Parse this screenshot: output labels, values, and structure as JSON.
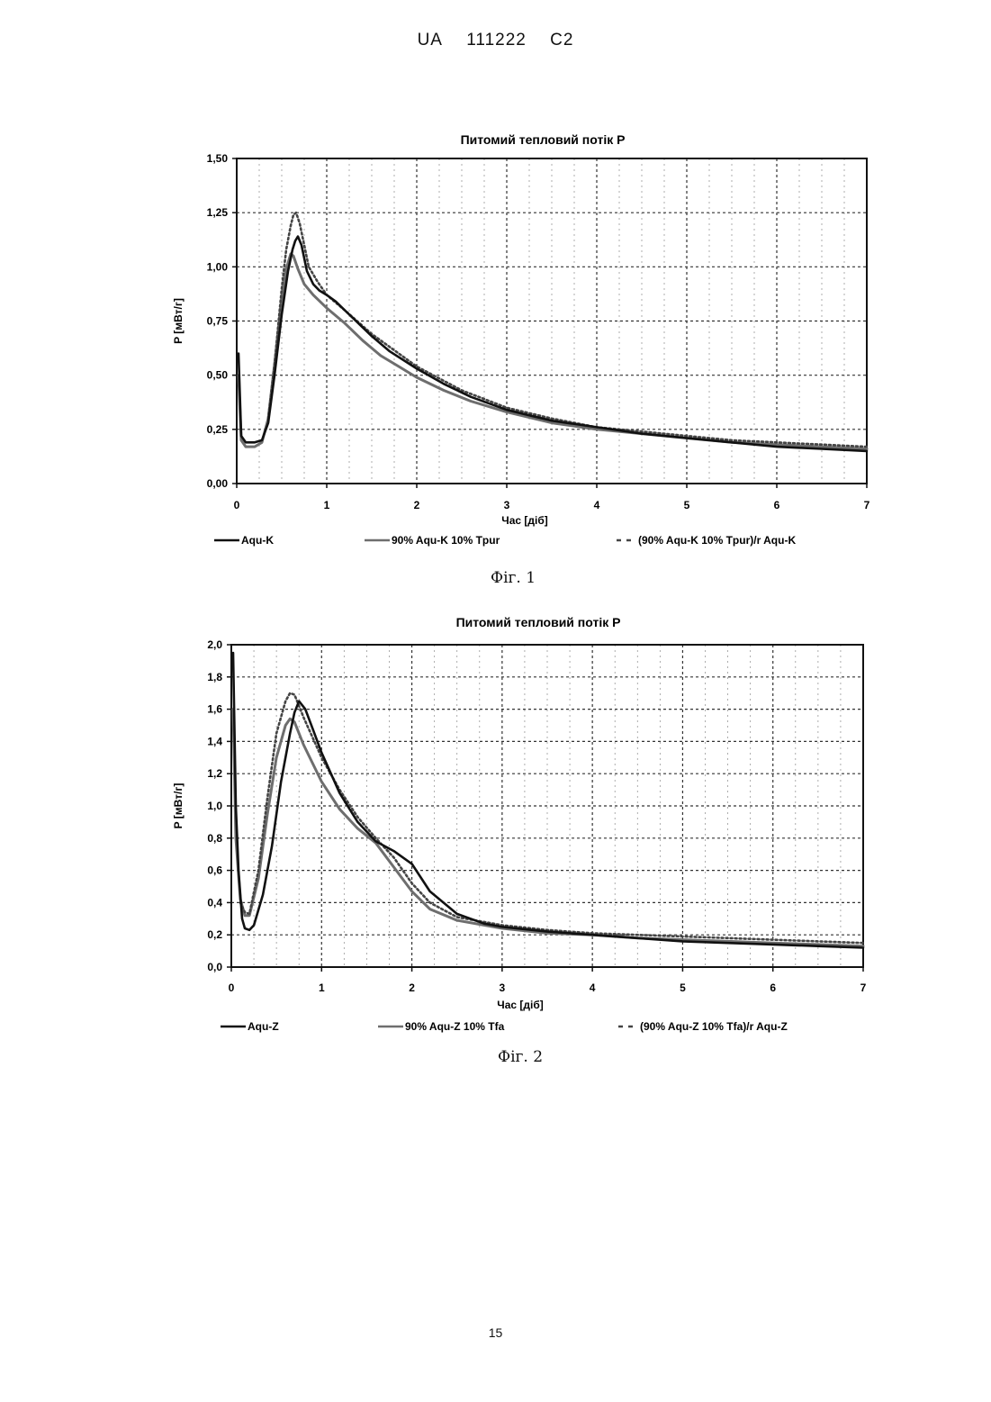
{
  "header": {
    "country": "UA",
    "number": "111222",
    "kind": "C2"
  },
  "page_number": "15",
  "captions": [
    "Фіг. 1",
    "Фіг. 2"
  ],
  "chart_data": [
    {
      "type": "line",
      "title": "Питомий тепловий потік P",
      "xlabel": "Час [діб]",
      "ylabel": "P [мВт/г]",
      "xlim": [
        0,
        7
      ],
      "ylim": [
        0,
        1.5
      ],
      "grid": true,
      "legend": "bottom",
      "x_ticks": [
        "0",
        "1",
        "2",
        "3",
        "4",
        "5",
        "6",
        "7"
      ],
      "y_ticks": [
        "0,00",
        "0,25",
        "0,50",
        "0,75",
        "1,00",
        "1,25",
        "1,50"
      ],
      "series": [
        {
          "name": "Aqu-K",
          "color": "#111111",
          "style": "solid",
          "points": [
            [
              0.02,
              0.6
            ],
            [
              0.05,
              0.22
            ],
            [
              0.1,
              0.19
            ],
            [
              0.2,
              0.19
            ],
            [
              0.28,
              0.2
            ],
            [
              0.35,
              0.28
            ],
            [
              0.42,
              0.5
            ],
            [
              0.5,
              0.78
            ],
            [
              0.57,
              0.98
            ],
            [
              0.62,
              1.08
            ],
            [
              0.65,
              1.12
            ],
            [
              0.68,
              1.14
            ],
            [
              0.72,
              1.1
            ],
            [
              0.78,
              0.98
            ],
            [
              0.85,
              0.92
            ],
            [
              0.92,
              0.89
            ],
            [
              1.0,
              0.87
            ],
            [
              1.1,
              0.84
            ],
            [
              1.2,
              0.8
            ],
            [
              1.3,
              0.76
            ],
            [
              1.5,
              0.68
            ],
            [
              1.7,
              0.61
            ],
            [
              2.0,
              0.53
            ],
            [
              2.3,
              0.46
            ],
            [
              2.6,
              0.4
            ],
            [
              3.0,
              0.34
            ],
            [
              3.5,
              0.29
            ],
            [
              4.0,
              0.26
            ],
            [
              4.5,
              0.23
            ],
            [
              5.0,
              0.21
            ],
            [
              5.5,
              0.19
            ],
            [
              6.0,
              0.17
            ],
            [
              6.5,
              0.16
            ],
            [
              7.0,
              0.15
            ]
          ]
        },
        {
          "name": "90% Aqu-K 10% Tpur",
          "color": "#6e6e6e",
          "style": "solid",
          "points": [
            [
              0.02,
              0.5
            ],
            [
              0.05,
              0.2
            ],
            [
              0.1,
              0.17
            ],
            [
              0.2,
              0.17
            ],
            [
              0.28,
              0.19
            ],
            [
              0.35,
              0.3
            ],
            [
              0.42,
              0.55
            ],
            [
              0.5,
              0.85
            ],
            [
              0.55,
              0.99
            ],
            [
              0.6,
              1.06
            ],
            [
              0.63,
              1.05
            ],
            [
              0.68,
              0.99
            ],
            [
              0.75,
              0.92
            ],
            [
              0.85,
              0.87
            ],
            [
              1.0,
              0.81
            ],
            [
              1.2,
              0.74
            ],
            [
              1.4,
              0.66
            ],
            [
              1.6,
              0.59
            ],
            [
              1.8,
              0.54
            ],
            [
              2.0,
              0.49
            ],
            [
              2.3,
              0.43
            ],
            [
              2.6,
              0.38
            ],
            [
              3.0,
              0.33
            ],
            [
              3.5,
              0.28
            ],
            [
              4.0,
              0.25
            ],
            [
              4.5,
              0.23
            ],
            [
              5.0,
              0.21
            ],
            [
              5.5,
              0.19
            ],
            [
              6.0,
              0.18
            ],
            [
              6.5,
              0.17
            ],
            [
              7.0,
              0.16
            ]
          ]
        },
        {
          "name": "(90% Aqu-K 10% Tpur)/r Aqu-K",
          "color": "#444444",
          "style": "dashed",
          "points": [
            [
              0.35,
              0.3
            ],
            [
              0.42,
              0.55
            ],
            [
              0.5,
              0.9
            ],
            [
              0.55,
              1.08
            ],
            [
              0.6,
              1.19
            ],
            [
              0.63,
              1.24
            ],
            [
              0.66,
              1.25
            ],
            [
              0.7,
              1.2
            ],
            [
              0.75,
              1.1
            ],
            [
              0.8,
              1.0
            ],
            [
              0.9,
              0.93
            ],
            [
              1.0,
              0.87
            ],
            [
              1.2,
              0.8
            ],
            [
              1.5,
              0.69
            ],
            [
              2.0,
              0.54
            ],
            [
              2.5,
              0.43
            ],
            [
              3.0,
              0.35
            ],
            [
              3.5,
              0.3
            ],
            [
              4.0,
              0.26
            ],
            [
              4.5,
              0.24
            ],
            [
              5.0,
              0.22
            ],
            [
              5.5,
              0.2
            ],
            [
              6.0,
              0.19
            ],
            [
              6.5,
              0.18
            ],
            [
              7.0,
              0.17
            ]
          ]
        }
      ]
    },
    {
      "type": "line",
      "title": "Питомий тепловий потік P",
      "xlabel": "Час [діб]",
      "ylabel": "P [мВт/г]",
      "xlim": [
        0,
        7
      ],
      "ylim": [
        0,
        2.0
      ],
      "grid": true,
      "legend": "bottom",
      "x_ticks": [
        "0",
        "1",
        "2",
        "3",
        "4",
        "5",
        "6",
        "7"
      ],
      "y_ticks": [
        "0,0",
        "0,2",
        "0,4",
        "0,6",
        "0,8",
        "1,0",
        "1,2",
        "1,4",
        "1,6",
        "1,8",
        "2,0"
      ],
      "series": [
        {
          "name": "Aqu-Z",
          "color": "#111111",
          "style": "solid",
          "points": [
            [
              0.02,
              1.95
            ],
            [
              0.05,
              1.0
            ],
            [
              0.08,
              0.6
            ],
            [
              0.12,
              0.3
            ],
            [
              0.15,
              0.24
            ],
            [
              0.2,
              0.23
            ],
            [
              0.25,
              0.26
            ],
            [
              0.35,
              0.45
            ],
            [
              0.45,
              0.75
            ],
            [
              0.55,
              1.15
            ],
            [
              0.65,
              1.45
            ],
            [
              0.7,
              1.58
            ],
            [
              0.75,
              1.65
            ],
            [
              0.82,
              1.6
            ],
            [
              0.9,
              1.48
            ],
            [
              1.0,
              1.33
            ],
            [
              1.2,
              1.08
            ],
            [
              1.4,
              0.9
            ],
            [
              1.6,
              0.78
            ],
            [
              1.8,
              0.72
            ],
            [
              2.0,
              0.64
            ],
            [
              2.2,
              0.47
            ],
            [
              2.5,
              0.33
            ],
            [
              2.8,
              0.27
            ],
            [
              3.0,
              0.25
            ],
            [
              3.5,
              0.22
            ],
            [
              4.0,
              0.2
            ],
            [
              4.5,
              0.18
            ],
            [
              5.0,
              0.16
            ],
            [
              5.5,
              0.15
            ],
            [
              6.0,
              0.14
            ],
            [
              6.5,
              0.13
            ],
            [
              7.0,
              0.12
            ]
          ]
        },
        {
          "name": "90% Aqu-Z 10% Tfa",
          "color": "#6e6e6e",
          "style": "solid",
          "points": [
            [
              0.02,
              1.6
            ],
            [
              0.05,
              0.8
            ],
            [
              0.1,
              0.42
            ],
            [
              0.15,
              0.32
            ],
            [
              0.2,
              0.32
            ],
            [
              0.3,
              0.55
            ],
            [
              0.4,
              0.95
            ],
            [
              0.5,
              1.3
            ],
            [
              0.6,
              1.5
            ],
            [
              0.65,
              1.54
            ],
            [
              0.7,
              1.52
            ],
            [
              0.8,
              1.38
            ],
            [
              1.0,
              1.15
            ],
            [
              1.2,
              0.98
            ],
            [
              1.4,
              0.86
            ],
            [
              1.6,
              0.77
            ],
            [
              1.8,
              0.62
            ],
            [
              2.0,
              0.47
            ],
            [
              2.2,
              0.36
            ],
            [
              2.5,
              0.29
            ],
            [
              3.0,
              0.24
            ],
            [
              3.5,
              0.21
            ],
            [
              4.0,
              0.2
            ],
            [
              4.5,
              0.18
            ],
            [
              5.0,
              0.17
            ],
            [
              5.5,
              0.16
            ],
            [
              6.0,
              0.15
            ],
            [
              6.5,
              0.14
            ],
            [
              7.0,
              0.13
            ]
          ]
        },
        {
          "name": "(90% Aqu-Z 10% Tfa)/r Aqu-Z",
          "color": "#444444",
          "style": "dashed",
          "points": [
            [
              0.1,
              0.4
            ],
            [
              0.15,
              0.34
            ],
            [
              0.2,
              0.33
            ],
            [
              0.3,
              0.6
            ],
            [
              0.4,
              1.05
            ],
            [
              0.5,
              1.45
            ],
            [
              0.6,
              1.65
            ],
            [
              0.65,
              1.7
            ],
            [
              0.7,
              1.69
            ],
            [
              0.8,
              1.55
            ],
            [
              1.0,
              1.3
            ],
            [
              1.2,
              1.1
            ],
            [
              1.4,
              0.93
            ],
            [
              1.6,
              0.8
            ],
            [
              1.8,
              0.68
            ],
            [
              2.0,
              0.52
            ],
            [
              2.2,
              0.4
            ],
            [
              2.5,
              0.31
            ],
            [
              3.0,
              0.26
            ],
            [
              3.5,
              0.23
            ],
            [
              4.0,
              0.21
            ],
            [
              4.5,
              0.2
            ],
            [
              5.0,
              0.19
            ],
            [
              5.5,
              0.18
            ],
            [
              6.0,
              0.17
            ],
            [
              6.5,
              0.16
            ],
            [
              7.0,
              0.15
            ]
          ]
        }
      ]
    }
  ]
}
